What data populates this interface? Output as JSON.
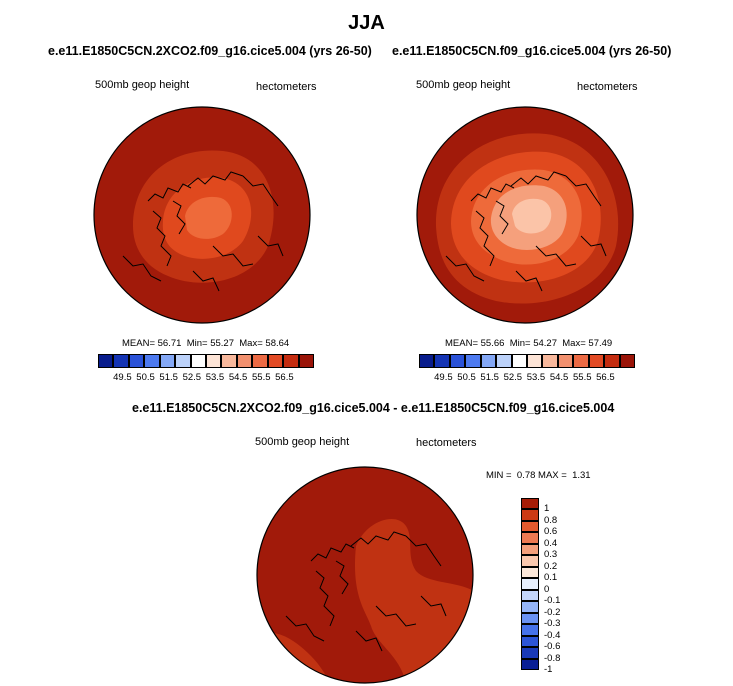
{
  "main_title": "JJA",
  "colors": {
    "hbar": [
      "#081c8c",
      "#1434b4",
      "#2a52d8",
      "#4d7af0",
      "#84a8f6",
      "#bcd2fa",
      "#ffffff",
      "#fde4d6",
      "#f8b89c",
      "#f2906e",
      "#ec6a44",
      "#e24a24",
      "#c42c10",
      "#9a1408"
    ],
    "vbar": [
      "#0a1f94",
      "#1a3ab8",
      "#2c54d6",
      "#4672ea",
      "#6a92f2",
      "#94b4f8",
      "#c4d6fb",
      "#e8f0fe",
      "#fde8da",
      "#fbc8ae",
      "#f5a07c",
      "#ee7a52",
      "#e55a2e",
      "#cc3a14",
      "#a61c06"
    ],
    "deep_red": "#a11a0a",
    "mid_red": "#c03212",
    "orange_red": "#e0491e",
    "orange": "#ee6a3a",
    "light_orange": "#f5a07c",
    "peach": "#fbc4a8"
  },
  "panels": [
    {
      "title": "e.e11.E1850C5CN.2XCO2.f09_g16.cice5.004 (yrs 26-50)",
      "left_label": "500mb geop height",
      "right_label": "hectometers",
      "stats": {
        "mean_label": "MEAN=",
        "mean": "56.71",
        "min_label": "Min=",
        "min": "55.27",
        "max_label": "Max=",
        "max": "58.64"
      },
      "ticks": [
        "49.5",
        "50.5",
        "51.5",
        "52.5",
        "53.5",
        "54.5",
        "55.5",
        "56.5"
      ]
    },
    {
      "title": "e.e11.E1850C5CN.f09_g16.cice5.004 (yrs 26-50)",
      "left_label": "500mb geop height",
      "right_label": "hectometers",
      "stats": {
        "mean_label": "MEAN=",
        "mean": "55.66",
        "min_label": "Min=",
        "min": "54.27",
        "max_label": "Max=",
        "max": "57.49"
      },
      "ticks": [
        "49.5",
        "50.5",
        "51.5",
        "52.5",
        "53.5",
        "54.5",
        "55.5",
        "56.5"
      ]
    }
  ],
  "diff": {
    "title": "e.e11.E1850C5CN.2XCO2.f09_g16.cice5.004 - e.e11.E1850C5CN.f09_g16.cice5.004",
    "left_label": "500mb geop height",
    "right_label": "hectometers",
    "minmax": {
      "min_label": "MIN =",
      "min": "0.78",
      "max_label": "MAX =",
      "max": "1.31"
    },
    "ticks": [
      "1",
      "0.8",
      "0.6",
      "0.4",
      "0.3",
      "0.2",
      "0.1",
      "0",
      "-0.1",
      "-0.2",
      "-0.3",
      "-0.4",
      "-0.6",
      "-0.8",
      "-1"
    ]
  }
}
